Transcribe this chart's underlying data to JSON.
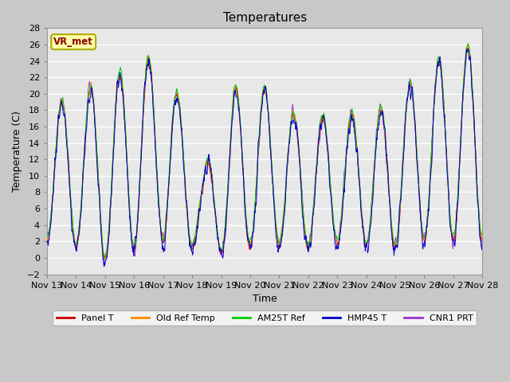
{
  "title": "Temperatures",
  "xlabel": "Time",
  "ylabel": "Temperature (C)",
  "ylim": [
    -2,
    28
  ],
  "annotation": "VR_met",
  "series_names": [
    "Panel T",
    "Old Ref Temp",
    "AM25T Ref",
    "HMP45 T",
    "CNR1 PRT"
  ],
  "series_colors": [
    "#cc0000",
    "#ff8800",
    "#00cc00",
    "#0000cc",
    "#9933cc"
  ],
  "xtick_labels": [
    "Nov 13",
    "Nov 14",
    "Nov 15",
    "Nov 16",
    "Nov 17",
    "Nov 18",
    "Nov 19",
    "Nov 20",
    "Nov 21",
    "Nov 22",
    "Nov 23",
    "Nov 24",
    "Nov 25",
    "Nov 26",
    "Nov 27",
    "Nov 28"
  ],
  "bg_color": "#e8e8e8",
  "fig_bg": "#c8c8c8"
}
